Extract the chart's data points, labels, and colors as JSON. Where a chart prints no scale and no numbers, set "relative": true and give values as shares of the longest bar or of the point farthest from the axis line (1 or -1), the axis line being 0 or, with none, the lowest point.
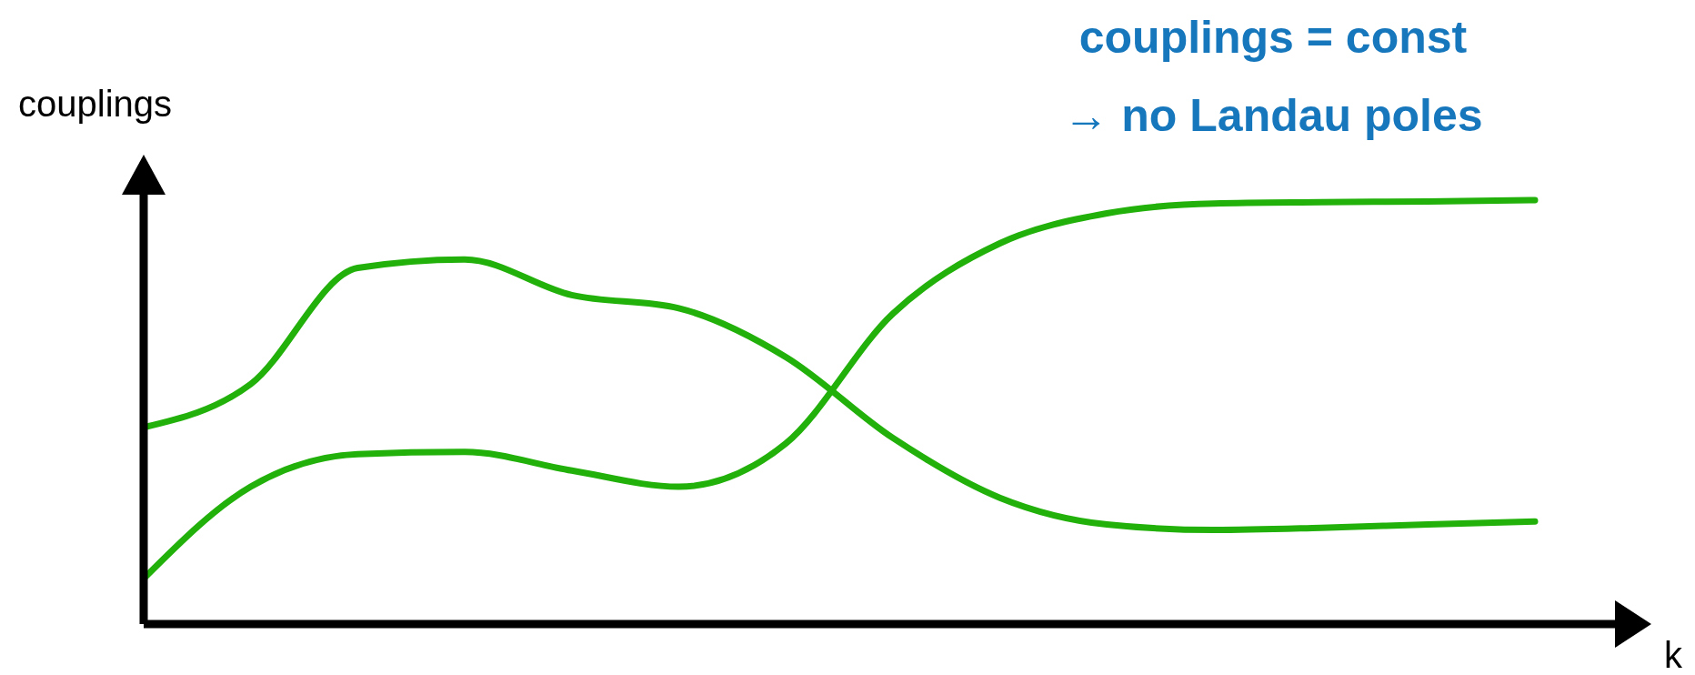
{
  "chart_data": {
    "type": "line",
    "relative": true,
    "xlabel": "k",
    "ylabel": "couplings",
    "annotations": [
      "couplings = const\n→ no Landau poles"
    ],
    "categories": [
      null,
      null,
      null,
      null,
      null,
      null,
      null,
      null,
      null,
      null,
      null,
      null,
      null,
      null
    ],
    "series": [
      {
        "color": "#22b00a",
        "values": [
          0.464,
          0.566,
          0.84,
          0.86,
          0.776,
          0.745,
          0.63,
          0.439,
          0.298,
          0.235,
          0.222,
          0.227,
          0.235,
          0.242
        ]
      },
      {
        "color": "#22b00a",
        "values": [
          0.107,
          0.324,
          0.401,
          0.406,
          0.362,
          0.324,
          0.426,
          0.732,
          0.898,
          0.969,
          0.992,
          0.995,
          0.997,
          1.0
        ]
      }
    ],
    "marker": "none",
    "line_style": "solid"
  }
}
